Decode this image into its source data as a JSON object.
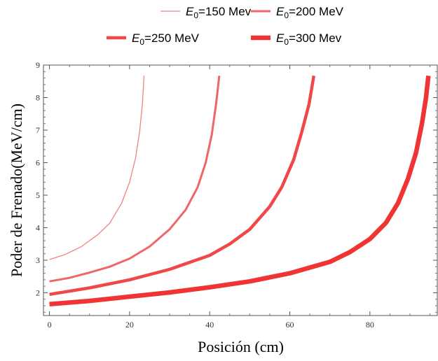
{
  "chart_data": {
    "type": "line",
    "xlabel": "Posición (cm)",
    "ylabel": "Poder de Frenado(MeV/cm)",
    "xlim": [
      -1.5,
      97
    ],
    "ylim": [
      1.3,
      9
    ],
    "x_ticks": [
      0,
      20,
      40,
      60,
      80
    ],
    "y_ticks": [
      2,
      3,
      4,
      5,
      6,
      7,
      8,
      9
    ],
    "grid": false,
    "legend_position": "top",
    "series": [
      {
        "name_parts": [
          "E",
          "0",
          "=150 Mev"
        ],
        "color": "#f28282",
        "points": [
          [
            0,
            3.02
          ],
          [
            4,
            3.18
          ],
          [
            8,
            3.42
          ],
          [
            12,
            3.78
          ],
          [
            15,
            4.13
          ],
          [
            18,
            4.75
          ],
          [
            20,
            5.4
          ],
          [
            21.5,
            6.15
          ],
          [
            22.5,
            6.95
          ],
          [
            23.2,
            7.8
          ],
          [
            23.6,
            8.67
          ]
        ]
      },
      {
        "name_parts": [
          "E",
          "0",
          "=200 MeV"
        ],
        "color": "#f06666",
        "points": [
          [
            0,
            2.35
          ],
          [
            5,
            2.46
          ],
          [
            10,
            2.62
          ],
          [
            15,
            2.8
          ],
          [
            20,
            3.05
          ],
          [
            25,
            3.42
          ],
          [
            30,
            3.95
          ],
          [
            34,
            4.55
          ],
          [
            37,
            5.25
          ],
          [
            39,
            6.0
          ],
          [
            40.5,
            6.85
          ],
          [
            41.6,
            7.8
          ],
          [
            42.4,
            8.67
          ]
        ]
      },
      {
        "name_parts": [
          "E",
          "0",
          "=250 MeV"
        ],
        "color": "#f04848",
        "points": [
          [
            0,
            1.95
          ],
          [
            10,
            2.15
          ],
          [
            20,
            2.4
          ],
          [
            30,
            2.72
          ],
          [
            40,
            3.15
          ],
          [
            45,
            3.5
          ],
          [
            50,
            3.95
          ],
          [
            55,
            4.65
          ],
          [
            58,
            5.25
          ],
          [
            61,
            6.1
          ],
          [
            63,
            6.95
          ],
          [
            64.8,
            7.8
          ],
          [
            66,
            8.67
          ]
        ]
      },
      {
        "name_parts": [
          "E",
          "0",
          "=300 Mev"
        ],
        "color": "#f03434",
        "points": [
          [
            0,
            1.65
          ],
          [
            10,
            1.75
          ],
          [
            20,
            1.88
          ],
          [
            30,
            2.01
          ],
          [
            40,
            2.17
          ],
          [
            50,
            2.35
          ],
          [
            60,
            2.6
          ],
          [
            70,
            2.95
          ],
          [
            75,
            3.25
          ],
          [
            80,
            3.65
          ],
          [
            84,
            4.15
          ],
          [
            87,
            4.75
          ],
          [
            89.5,
            5.5
          ],
          [
            91.5,
            6.3
          ],
          [
            93,
            7.2
          ],
          [
            94,
            8.0
          ],
          [
            94.6,
            8.67
          ]
        ]
      }
    ]
  }
}
